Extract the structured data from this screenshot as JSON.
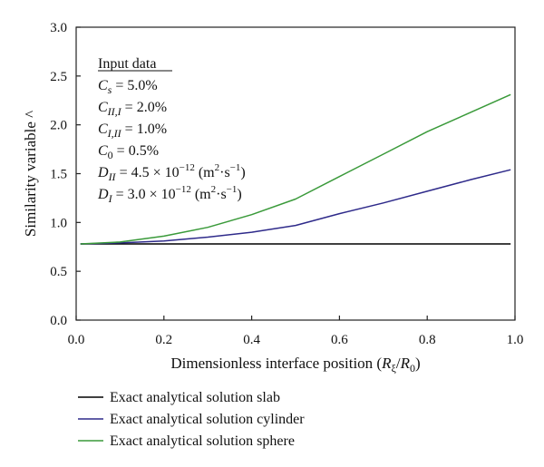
{
  "chart_data": {
    "type": "line",
    "xlabel": {
      "main": "Dimensionless interface position (",
      "var1": "R",
      "sub1": "ξ",
      "slash": "/",
      "var2": "R",
      "sub2": "0",
      "close": ")"
    },
    "ylabel": "Similarity variable ^",
    "xlim": [
      0.0,
      1.0
    ],
    "ylim": [
      0.0,
      3.0
    ],
    "xticks": [
      "0.0",
      "0.2",
      "0.4",
      "0.6",
      "0.8",
      "1.0"
    ],
    "yticks": [
      "0.0",
      "0.5",
      "1.0",
      "1.5",
      "2.0",
      "2.5",
      "3.0"
    ],
    "grid": false,
    "legend_placement": "below-left",
    "annotation": {
      "title": "Input data",
      "cs": {
        "var": "C",
        "sub": "s",
        "rest": " = 5.0%"
      },
      "c2": {
        "var": "C",
        "sub": "II,I",
        "rest": " = 2.0%"
      },
      "c1": {
        "var": "C",
        "sub": "I,II",
        "rest": " = 1.0%"
      },
      "c0": {
        "var": "C",
        "sub": "0",
        "rest": " = 0.5%"
      },
      "d2": {
        "var": "D",
        "sub": "II",
        "eq": " = 4.5 × 10",
        "exp": "−12",
        "unit_open": " (m",
        "unit_sq": "2",
        "unit_mid": "·s",
        "unit_exp": "−1",
        "unit_close": ")"
      },
      "d1": {
        "var": "D",
        "sub": "I",
        "eq": " = 3.0 × 10",
        "exp": "−12",
        "unit_open": " (m",
        "unit_sq": "2",
        "unit_mid": "·s",
        "unit_exp": "−1",
        "unit_close": ")"
      }
    },
    "series": [
      {
        "name": "Exact analytical solution slab",
        "color": "#000000",
        "x": [
          0.01,
          0.2,
          0.4,
          0.6,
          0.8,
          0.99
        ],
        "y": [
          0.78,
          0.78,
          0.78,
          0.78,
          0.78,
          0.78
        ]
      },
      {
        "name": "Exact analytical solution cylinder",
        "color": "#2e2a8a",
        "x": [
          0.01,
          0.1,
          0.2,
          0.3,
          0.4,
          0.5,
          0.6,
          0.7,
          0.8,
          0.9,
          0.99
        ],
        "y": [
          0.78,
          0.79,
          0.81,
          0.85,
          0.9,
          0.97,
          1.09,
          1.2,
          1.32,
          1.44,
          1.54
        ]
      },
      {
        "name": "Exact analytical solution sphere",
        "color": "#3a9a3a",
        "x": [
          0.01,
          0.1,
          0.2,
          0.3,
          0.4,
          0.5,
          0.6,
          0.7,
          0.8,
          0.9,
          0.99
        ],
        "y": [
          0.78,
          0.8,
          0.86,
          0.95,
          1.08,
          1.24,
          1.47,
          1.7,
          1.93,
          2.13,
          2.31
        ]
      }
    ]
  }
}
